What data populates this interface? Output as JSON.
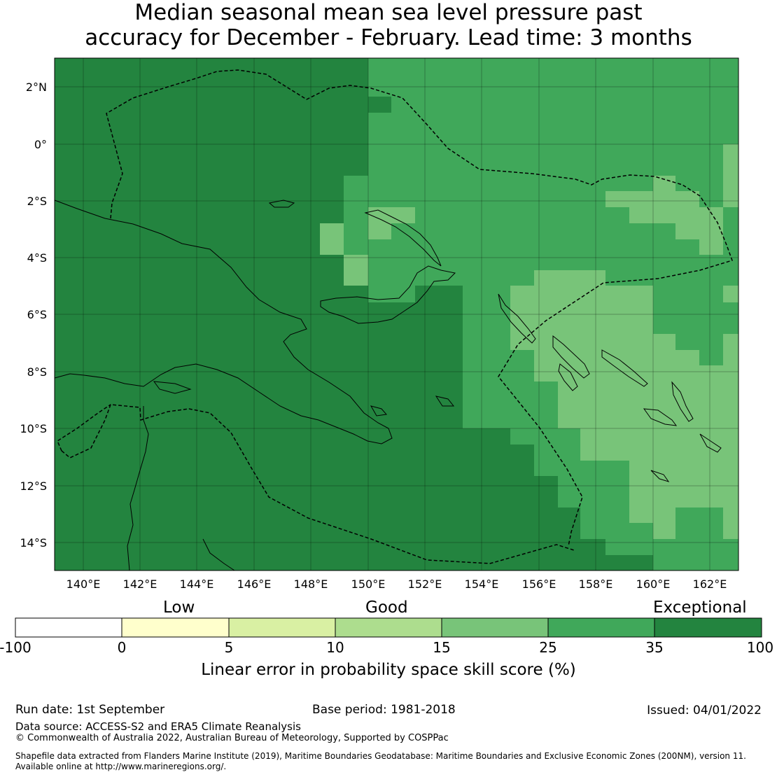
{
  "title": {
    "line1": "Median seasonal mean sea level pressure past",
    "line2": "accuracy for December - February. Lead time: 3 months"
  },
  "map": {
    "lon_ticks": [
      "140°E",
      "142°E",
      "144°E",
      "146°E",
      "148°E",
      "150°E",
      "152°E",
      "154°E",
      "156°E",
      "158°E",
      "160°E",
      "162°E"
    ],
    "lat_ticks": [
      "2°N",
      "0°",
      "2°S",
      "4°S",
      "6°S",
      "8°S",
      "10°S",
      "12°S",
      "14°S"
    ],
    "colors": {
      "exceptional": "#23843f",
      "c25_35": "#40a85a",
      "c15_25": "#78c479",
      "c10_15": "#addd8e",
      "c5_10": "#d9f0a3",
      "c0_5": "#ffffcc",
      "neg": "#ffffff"
    }
  },
  "colorbar": {
    "categories": {
      "low": "Low",
      "good": "Good",
      "exceptional": "Exceptional"
    },
    "ticks": [
      "-100",
      "0",
      "5",
      "10",
      "15",
      "25",
      "35",
      "100"
    ],
    "label": "Linear error in probability space skill score (%)"
  },
  "footer": {
    "run_date": "Run date: 1st September",
    "base_period": "Base period: 1981-2018",
    "issued": "Issued: 04/01/2022",
    "data_source": "Data source: ACCESS-S2 and ERA5 Climate Reanalysis",
    "copyright": "© Commonwealth of Australia 2022, Australian Bureau of Meteorology, Supported by COSPPac",
    "shapefile_line1": "Shapefile data extracted from Flanders Marine Institute (2019), Maritime Boundaries Geodatabase: Maritime Boundaries and Exclusive Economic Zones (200NM), version 11.",
    "shapefile_line2": "Available online at http://www.marineregions.org/."
  }
}
